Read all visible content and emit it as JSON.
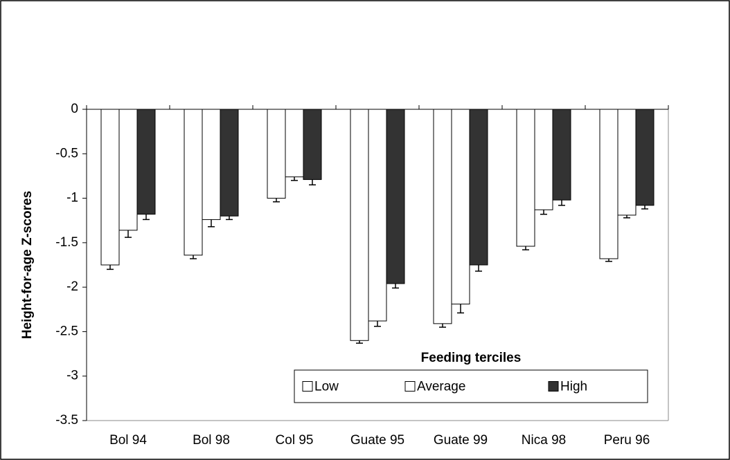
{
  "chart_data": {
    "type": "bar",
    "ylabel": "Height-for-age Z-scores",
    "categories": [
      "Bol 94",
      "Bol 98",
      "Col 95",
      "Guate 95",
      "Guate 99",
      "Nica 98",
      "Peru 96"
    ],
    "series": [
      {
        "name": "Low",
        "color": "#ffffff",
        "values": [
          -1.75,
          -1.64,
          -1.0,
          -2.6,
          -2.41,
          -1.54,
          -1.68
        ],
        "errors": [
          0.05,
          0.04,
          0.04,
          0.03,
          0.04,
          0.04,
          0.03
        ]
      },
      {
        "name": "Average",
        "color": "#ffffff",
        "values": [
          -1.36,
          -1.24,
          -0.76,
          -2.38,
          -2.19,
          -1.13,
          -1.19
        ],
        "errors": [
          0.08,
          0.08,
          0.04,
          0.06,
          0.1,
          0.05,
          0.03
        ]
      },
      {
        "name": "High",
        "color": "#333333",
        "values": [
          -1.18,
          -1.2,
          -0.79,
          -1.96,
          -1.75,
          -1.02,
          -1.08
        ],
        "errors": [
          0.06,
          0.04,
          0.06,
          0.05,
          0.07,
          0.06,
          0.04
        ]
      }
    ],
    "ylim": [
      -3.5,
      0
    ],
    "yticks": [
      0,
      -0.5,
      -1,
      -1.5,
      -2,
      -2.5,
      -3,
      -3.5
    ],
    "legend": {
      "title": "Feeding terciles",
      "position": "lower right"
    }
  }
}
